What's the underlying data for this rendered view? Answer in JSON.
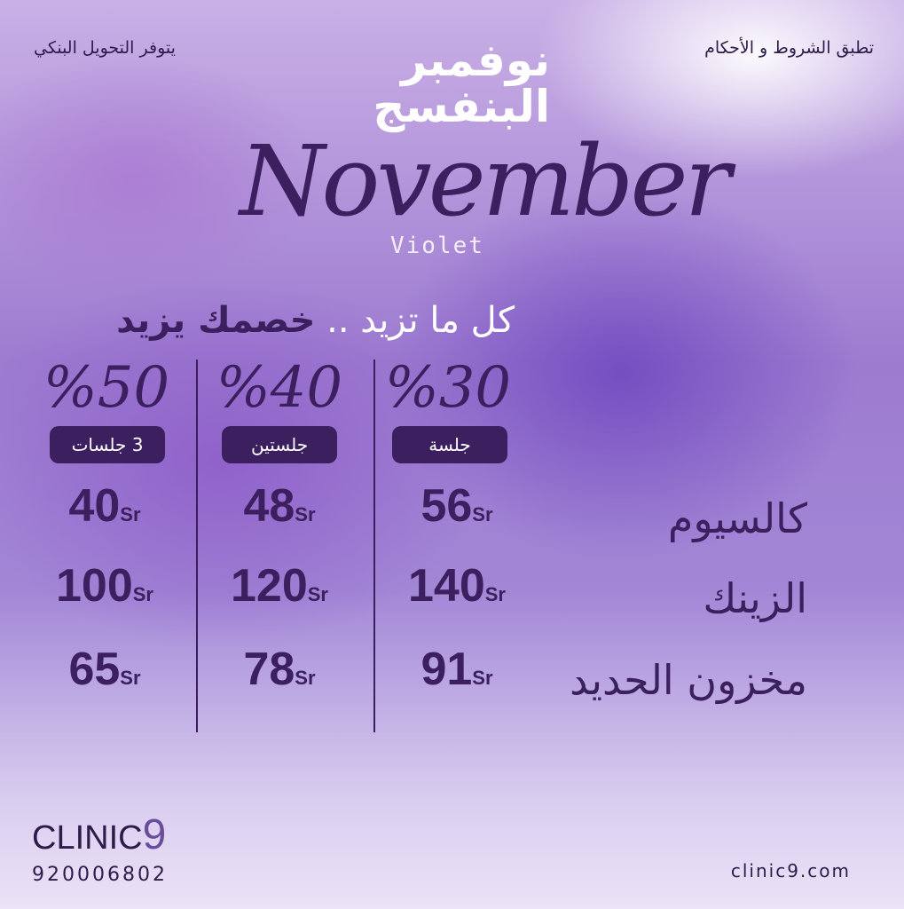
{
  "header": {
    "terms": "تطبق الشروط و الأحكام",
    "bank_transfer": "يتوفر التحويل البنكي"
  },
  "title": {
    "arabic_line1": "نوفمبر",
    "arabic_line2": "البنفسج",
    "english": "November",
    "english_sub": "Violet"
  },
  "tagline": {
    "part1": "كل ما تزيد ..",
    "part2": "خصمك يزيد"
  },
  "currency": "Sr",
  "columns": [
    {
      "discount": "%30",
      "sessions": "جلسة"
    },
    {
      "discount": "%40",
      "sessions": "جلستين"
    },
    {
      "discount": "%50",
      "sessions": "3 جلسات"
    }
  ],
  "rows": [
    {
      "name": "كالسيوم",
      "prices": [
        "56",
        "48",
        "40"
      ]
    },
    {
      "name": "الزينك",
      "prices": [
        "140",
        "120",
        "100"
      ]
    },
    {
      "name": "مخزون الحديد",
      "prices": [
        "91",
        "78",
        "65"
      ]
    }
  ],
  "footer": {
    "brand": "CLINIC",
    "brand_digit": "9",
    "phone": "920006802",
    "website": "clinic9.com"
  },
  "colors": {
    "primary": "#3b1f5e",
    "background": "#9d7bd0"
  }
}
